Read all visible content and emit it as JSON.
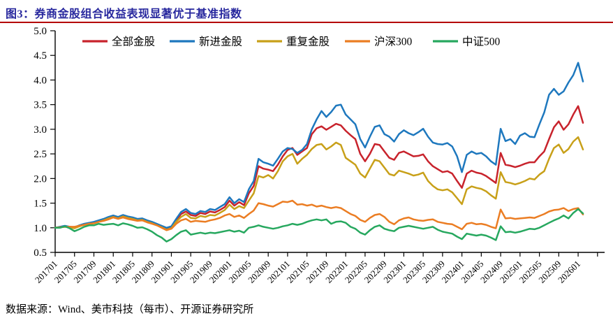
{
  "header": {
    "title": "图3：券商金股组合收益表现显著优于基准指数"
  },
  "footer": {
    "source": "数据来源：Wind、美市科技（每市）、开源证券研究所"
  },
  "colors": {
    "title": "#28289e",
    "title_rule": "#b40000",
    "axis": "#000000"
  },
  "chart_data": {
    "type": "line",
    "title": "券商金股组合收益表现显著优于基准指数",
    "xlabel": "",
    "ylabel": "",
    "ylim": [
      0.5,
      5.0
    ],
    "ytick_step": 0.5,
    "grid": false,
    "legend_position": "top",
    "x_start": "201701",
    "x_end": "202602",
    "x_frequency": "monthly",
    "y_ticks": [
      "0.5",
      "1.0",
      "1.5",
      "2.0",
      "2.5",
      "3.0",
      "3.5",
      "4.0",
      "4.5",
      "5.0"
    ],
    "x_labels": [
      "201701",
      "201705",
      "201709",
      "201801",
      "201805",
      "201809",
      "201901",
      "201905",
      "201909",
      "202001",
      "202005",
      "202009",
      "202101",
      "202105",
      "202109",
      "202201",
      "202205",
      "202209",
      "202301",
      "202305",
      "202309",
      "202401",
      "202405",
      "202409",
      "202501",
      "202505",
      "202509",
      "202601"
    ],
    "series": [
      {
        "name": "全部金股",
        "color": "#c8232c",
        "values": [
          1.0,
          1.01,
          1.03,
          1.02,
          1.0,
          1.04,
          1.07,
          1.09,
          1.1,
          1.13,
          1.16,
          1.2,
          1.23,
          1.2,
          1.24,
          1.21,
          1.19,
          1.16,
          1.17,
          1.13,
          1.1,
          1.06,
          1.02,
          0.97,
          1.0,
          1.15,
          1.28,
          1.33,
          1.26,
          1.24,
          1.3,
          1.28,
          1.33,
          1.31,
          1.36,
          1.42,
          1.55,
          1.45,
          1.52,
          1.46,
          1.7,
          1.85,
          2.25,
          2.2,
          2.18,
          2.15,
          2.28,
          2.45,
          2.58,
          2.62,
          2.48,
          2.55,
          2.62,
          2.9,
          3.02,
          3.06,
          2.99,
          3.05,
          3.11,
          3.08,
          2.97,
          2.88,
          2.8,
          2.5,
          2.35,
          2.5,
          2.7,
          2.68,
          2.55,
          2.42,
          2.38,
          2.52,
          2.55,
          2.5,
          2.45,
          2.46,
          2.49,
          2.35,
          2.25,
          2.19,
          2.13,
          2.15,
          2.1,
          1.95,
          1.81,
          2.1,
          2.16,
          2.12,
          2.1,
          2.05,
          1.98,
          1.91,
          2.52,
          2.28,
          2.26,
          2.23,
          2.26,
          2.3,
          2.33,
          2.33,
          2.45,
          2.55,
          2.8,
          3.04,
          3.16,
          2.99,
          3.1,
          3.3,
          3.47,
          3.13
        ]
      },
      {
        "name": "新进金股",
        "color": "#1e78be",
        "values": [
          1.0,
          1.02,
          1.04,
          1.02,
          1.01,
          1.05,
          1.08,
          1.1,
          1.12,
          1.15,
          1.18,
          1.22,
          1.25,
          1.22,
          1.26,
          1.23,
          1.21,
          1.18,
          1.19,
          1.15,
          1.12,
          1.08,
          1.04,
          1.0,
          1.03,
          1.18,
          1.32,
          1.38,
          1.3,
          1.28,
          1.34,
          1.32,
          1.38,
          1.36,
          1.42,
          1.48,
          1.62,
          1.5,
          1.58,
          1.52,
          1.78,
          1.95,
          2.4,
          2.33,
          2.3,
          2.26,
          2.4,
          2.55,
          2.62,
          2.6,
          2.52,
          2.58,
          2.7,
          3.0,
          3.2,
          3.37,
          3.25,
          3.35,
          3.48,
          3.5,
          3.3,
          3.2,
          3.1,
          2.8,
          2.63,
          2.85,
          3.05,
          3.08,
          2.9,
          2.85,
          2.75,
          2.9,
          2.98,
          2.92,
          2.88,
          2.94,
          3.01,
          2.85,
          2.73,
          2.7,
          2.69,
          2.72,
          2.65,
          2.45,
          2.13,
          2.48,
          2.55,
          2.5,
          2.52,
          2.45,
          2.35,
          2.28,
          3.01,
          2.76,
          2.8,
          2.7,
          2.87,
          2.92,
          2.85,
          2.84,
          3.1,
          3.34,
          3.7,
          3.82,
          3.7,
          3.77,
          3.95,
          4.1,
          4.35,
          3.97
        ]
      },
      {
        "name": "重复金股",
        "color": "#c8a019",
        "values": [
          1.0,
          1.01,
          1.02,
          1.01,
          0.99,
          1.03,
          1.06,
          1.08,
          1.09,
          1.12,
          1.15,
          1.19,
          1.22,
          1.19,
          1.23,
          1.2,
          1.18,
          1.15,
          1.16,
          1.12,
          1.09,
          1.05,
          1.01,
          0.96,
          0.99,
          1.12,
          1.22,
          1.28,
          1.2,
          1.19,
          1.24,
          1.22,
          1.26,
          1.25,
          1.3,
          1.36,
          1.47,
          1.38,
          1.44,
          1.4,
          1.55,
          1.7,
          2.05,
          2.02,
          2.07,
          2.0,
          2.15,
          2.35,
          2.45,
          2.5,
          2.3,
          2.4,
          2.48,
          2.6,
          2.68,
          2.7,
          2.59,
          2.65,
          2.73,
          2.68,
          2.42,
          2.35,
          2.28,
          2.1,
          2.02,
          2.2,
          2.38,
          2.35,
          2.22,
          2.09,
          2.06,
          2.16,
          2.13,
          2.1,
          2.06,
          2.08,
          2.12,
          1.95,
          1.85,
          1.78,
          1.76,
          1.78,
          1.72,
          1.6,
          1.48,
          1.78,
          1.84,
          1.81,
          1.79,
          1.74,
          1.66,
          1.59,
          2.13,
          1.93,
          1.91,
          1.88,
          1.91,
          1.95,
          2.0,
          1.98,
          2.08,
          2.15,
          2.4,
          2.62,
          2.69,
          2.52,
          2.6,
          2.75,
          2.84,
          2.59
        ]
      },
      {
        "name": "沪深300",
        "color": "#eb7d23",
        "values": [
          1.0,
          1.01,
          1.02,
          1.02,
          1.02,
          1.04,
          1.06,
          1.08,
          1.09,
          1.12,
          1.14,
          1.17,
          1.21,
          1.18,
          1.21,
          1.18,
          1.16,
          1.14,
          1.15,
          1.11,
          1.08,
          1.05,
          1.0,
          0.95,
          0.98,
          1.08,
          1.15,
          1.18,
          1.12,
          1.14,
          1.13,
          1.12,
          1.15,
          1.17,
          1.2,
          1.25,
          1.28,
          1.22,
          1.25,
          1.2,
          1.28,
          1.35,
          1.5,
          1.48,
          1.45,
          1.43,
          1.48,
          1.53,
          1.52,
          1.55,
          1.47,
          1.48,
          1.45,
          1.47,
          1.43,
          1.45,
          1.42,
          1.4,
          1.42,
          1.4,
          1.34,
          1.28,
          1.24,
          1.16,
          1.12,
          1.2,
          1.26,
          1.28,
          1.22,
          1.12,
          1.07,
          1.15,
          1.19,
          1.21,
          1.17,
          1.15,
          1.14,
          1.16,
          1.17,
          1.12,
          1.1,
          1.08,
          1.07,
          1.02,
          0.97,
          1.08,
          1.1,
          1.07,
          1.08,
          1.06,
          1.02,
          0.99,
          1.37,
          1.19,
          1.2,
          1.18,
          1.19,
          1.2,
          1.21,
          1.2,
          1.24,
          1.28,
          1.33,
          1.36,
          1.37,
          1.4,
          1.34,
          1.38,
          1.4,
          1.27
        ]
      },
      {
        "name": "中证500",
        "color": "#27a85f",
        "values": [
          1.0,
          1.0,
          1.03,
          0.99,
          0.93,
          0.97,
          1.02,
          1.05,
          1.05,
          1.08,
          1.06,
          1.07,
          1.08,
          1.05,
          1.09,
          1.07,
          1.04,
          1.0,
          1.01,
          0.97,
          0.92,
          0.85,
          0.8,
          0.72,
          0.77,
          0.85,
          0.92,
          0.95,
          0.86,
          0.88,
          0.9,
          0.88,
          0.9,
          0.89,
          0.91,
          0.93,
          0.95,
          0.92,
          0.94,
          0.9,
          1.0,
          1.02,
          1.05,
          1.02,
          1.0,
          0.98,
          1.0,
          1.03,
          1.05,
          1.08,
          1.06,
          1.08,
          1.12,
          1.15,
          1.17,
          1.15,
          1.17,
          1.08,
          1.12,
          1.13,
          1.1,
          1.02,
          0.98,
          0.9,
          0.86,
          0.95,
          1.02,
          1.05,
          0.98,
          0.95,
          0.93,
          1.0,
          1.02,
          1.04,
          1.02,
          1.0,
          0.98,
          1.0,
          1.02,
          0.96,
          0.92,
          0.9,
          0.88,
          0.82,
          0.77,
          0.88,
          0.86,
          0.84,
          0.86,
          0.84,
          0.8,
          0.75,
          1.03,
          0.91,
          0.92,
          0.9,
          0.92,
          0.95,
          0.98,
          0.97,
          1.0,
          1.05,
          1.1,
          1.15,
          1.19,
          1.25,
          1.19,
          1.3,
          1.38,
          1.29
        ]
      }
    ]
  }
}
